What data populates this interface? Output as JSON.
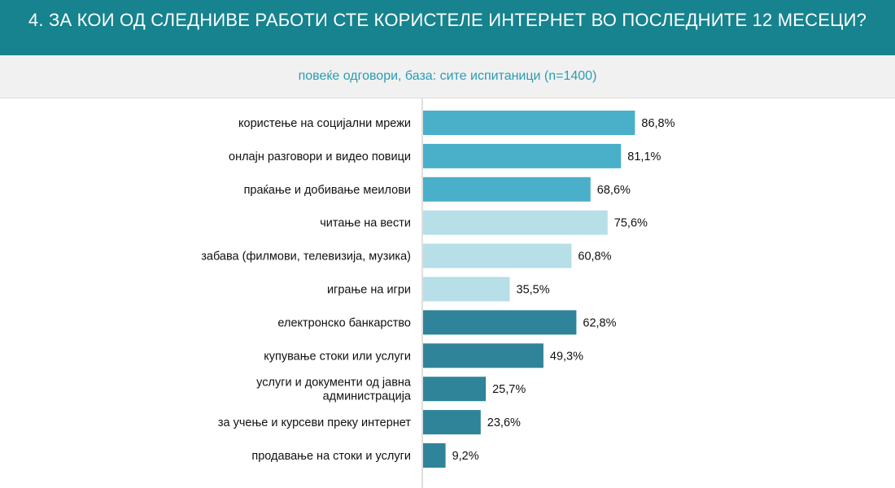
{
  "header": {
    "title": "4. ЗА КОИ ОД СЛЕДНИВЕ РАБОТИ СТЕ КОРИСТЕЛЕ ИНТЕРНЕТ ВО ПОСЛЕДНИТЕ 12 МЕСЕЦИ?"
  },
  "subheader": {
    "text": "повеќе одговори, база: сите испитаници (n=1400)"
  },
  "colors": {
    "header_bg": "#16838e",
    "group_1": "#4aafc9",
    "group_2": "#b6dfe8",
    "group_3": "#2f8499"
  },
  "chart_data": {
    "type": "bar",
    "orientation": "horizontal",
    "value_suffix": "%",
    "decimal_separator": ",",
    "categories": [
      [
        "користење на социјални мрежи"
      ],
      [
        "онлајн разговори и видео повици"
      ],
      [
        "праќање и добивање меилови"
      ],
      [
        "читање на вести"
      ],
      [
        "забава (филмови, телевизија, музика)"
      ],
      [
        "играње на игри"
      ],
      [
        "електронско банкарство"
      ],
      [
        "купување стоки или услуги"
      ],
      [
        "услуги и документи од јавна",
        "администрација"
      ],
      [
        "за учење и курсеви преку интернет"
      ],
      [
        "продавање на стоки и услуги"
      ]
    ],
    "values": [
      86.8,
      81.1,
      68.6,
      75.6,
      60.8,
      35.5,
      62.8,
      49.3,
      25.7,
      23.6,
      9.2
    ],
    "color_groups": [
      1,
      1,
      1,
      2,
      2,
      2,
      3,
      3,
      3,
      3,
      3
    ],
    "xlim": [
      0,
      100
    ],
    "grid": false,
    "legend": false
  }
}
